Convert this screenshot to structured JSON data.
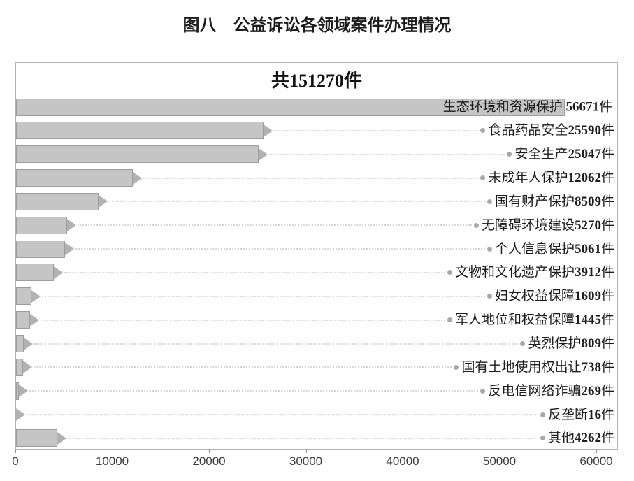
{
  "title": "图八　公益诉讼各领域案件办理情况",
  "chart_data": {
    "type": "bar",
    "orientation": "horizontal",
    "title": "共151270件",
    "total": 151270,
    "unit_suffix": "件",
    "categories": [
      "生态环境和资源保护",
      "食品药品安全",
      "安全生产",
      "未成年人保护",
      "国有财产保护",
      "无障碍环境建设",
      "个人信息保护",
      "文物和文化遗产保护",
      "妇女权益保障",
      "军人地位和权益保障",
      "英烈保护",
      "国有土地使用权出让",
      "反电信网络诈骗",
      "反垄断",
      "其他"
    ],
    "values": [
      56671,
      25590,
      25047,
      12062,
      8509,
      5270,
      5061,
      3912,
      1609,
      1445,
      809,
      738,
      269,
      16,
      4262
    ],
    "xlabel": "",
    "ylabel": "",
    "xlim": [
      0,
      60000
    ],
    "x_ticks": [
      0,
      10000,
      20000,
      30000,
      40000,
      50000,
      60000
    ],
    "grid": false,
    "legend": "none",
    "first_row_space": " ",
    "colors": {
      "bar_fill": "#c5c5c5",
      "bar_border": "#9d9d9d",
      "arrow": "#b2b2b2",
      "leader": "#d7d7d7",
      "dot": "#a8a8a8",
      "box_border": "#b0b0b0"
    }
  }
}
